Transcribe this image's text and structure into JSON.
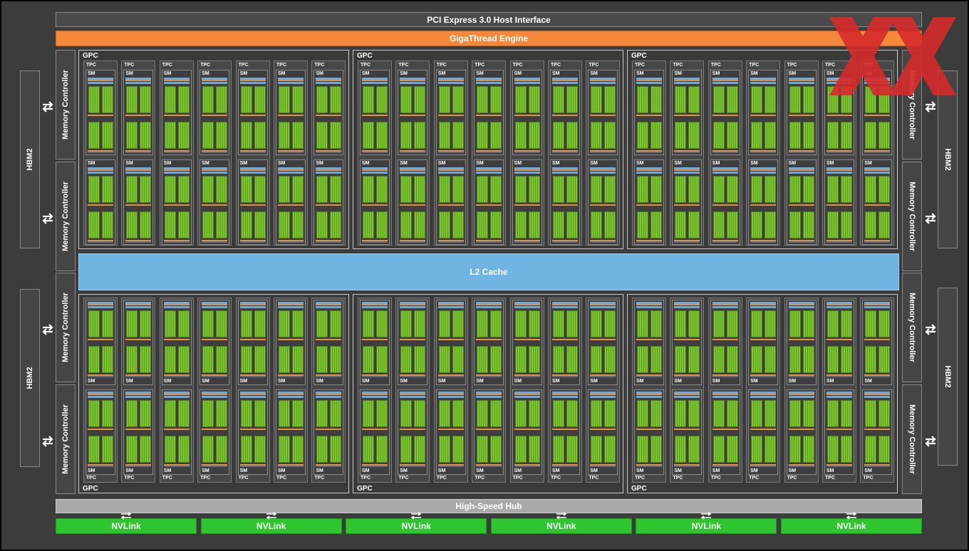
{
  "labels": {
    "pci": "PCI Express 3.0 Host Interface",
    "gigathread": "GigaThread Engine",
    "l2": "L2 Cache",
    "hub": "High-Speed Hub",
    "memory_controller": "Memory Controller",
    "hbm": "HBM2",
    "gpc": "GPC",
    "tpc": "TPC",
    "sm": "SM",
    "nvlink": "NVLink"
  },
  "counts": {
    "gpcs": 6,
    "tpcs_per_gpc": 7,
    "sms_per_tpc": 2,
    "nvlinks": 6,
    "memory_controllers": 8,
    "hbm_stacks": 4
  },
  "colors": {
    "gigathread": "#f5883a",
    "l2": "#6fb4e2",
    "nvlink": "#2ec52e",
    "hub": "#a9a9a9",
    "core": "#7cc432",
    "logo": "#d62b2b"
  },
  "icons": {
    "memory_link": "bidirectional-arrows-icon",
    "logo": "xx-logo-icon"
  }
}
